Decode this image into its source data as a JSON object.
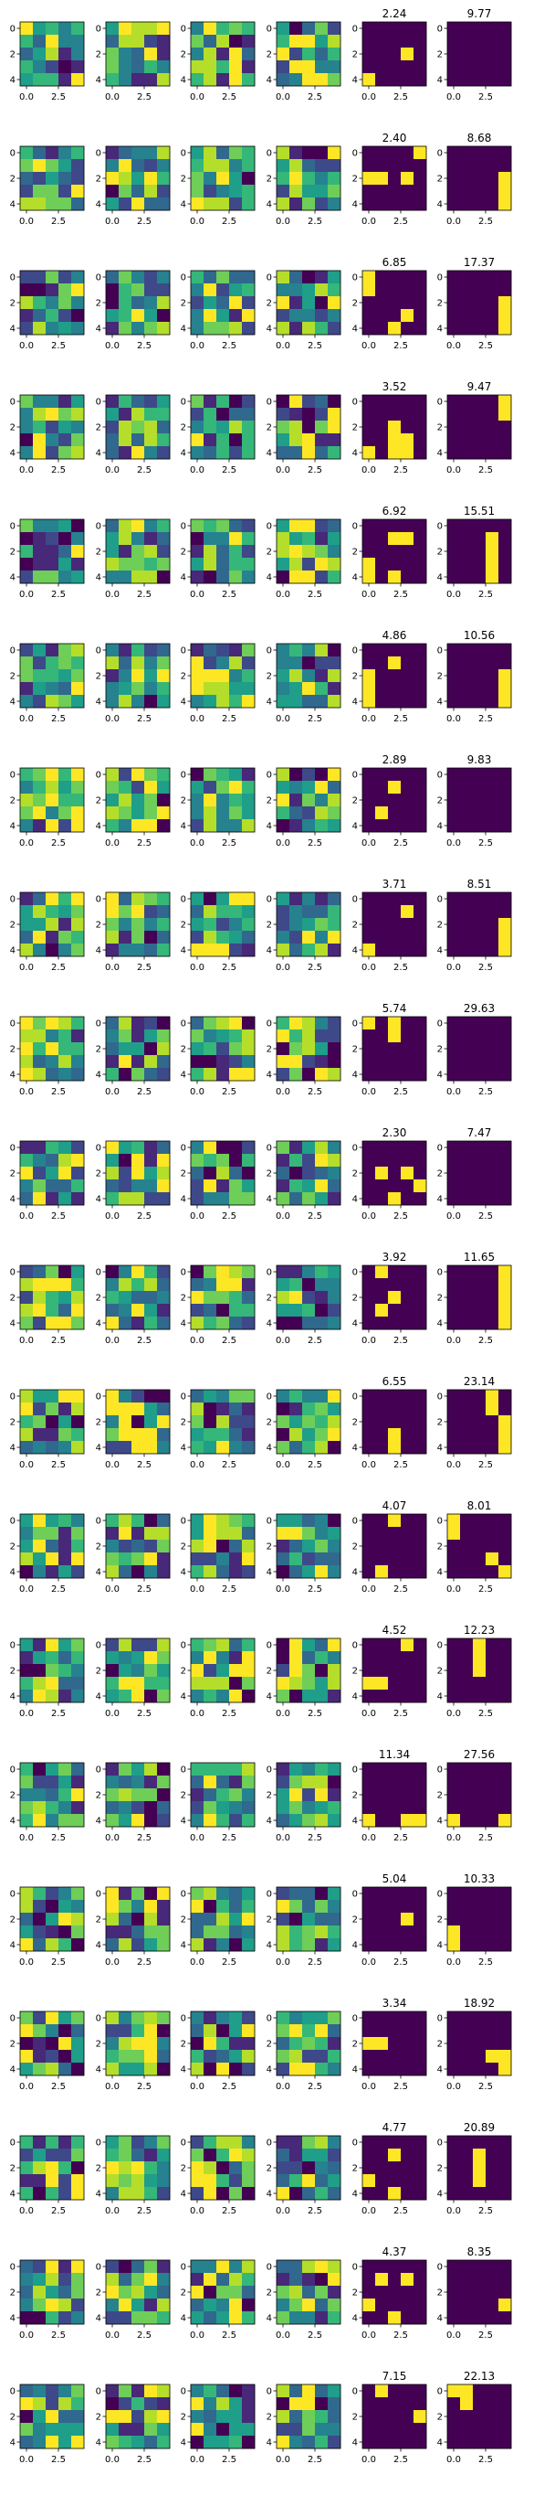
{
  "figure": {
    "rows": 20,
    "cols": 6,
    "grid_size": 5
  },
  "axis": {
    "x_ticks": [
      0.0,
      2.5
    ],
    "x_tick_labels": [
      "0.0",
      "2.5"
    ],
    "y_ticks": [
      0,
      2,
      4
    ],
    "y_tick_labels": [
      "0",
      "2",
      "4"
    ]
  },
  "colors": {
    "viridis": [
      "#440154",
      "#482878",
      "#3e4989",
      "#31688e",
      "#26828e",
      "#1f9e89",
      "#35b779",
      "#6ece58",
      "#b5de2b",
      "#fde725"
    ],
    "frame": "#000000",
    "background": "#ffffff"
  },
  "chart_data": {
    "type": "heatmap",
    "colormap": "viridis",
    "title_columns": [
      4,
      5
    ],
    "titles": [
      [
        "2.24",
        "9.77"
      ],
      [
        "2.40",
        "8.68"
      ],
      [
        "6.85",
        "17.37"
      ],
      [
        "3.52",
        "9.47"
      ],
      [
        "6.92",
        "15.51"
      ],
      [
        "4.86",
        "10.56"
      ],
      [
        "2.89",
        "9.83"
      ],
      [
        "3.71",
        "8.51"
      ],
      [
        "5.74",
        "29.63"
      ],
      [
        "2.30",
        "7.47"
      ],
      [
        "3.92",
        "11.65"
      ],
      [
        "6.55",
        "23.14"
      ],
      [
        "4.07",
        "8.01"
      ],
      [
        "4.52",
        "12.23"
      ],
      [
        "11.34",
        "27.56"
      ],
      [
        "5.04",
        "10.33"
      ],
      [
        "3.34",
        "18.92"
      ],
      [
        "4.77",
        "20.89"
      ],
      [
        "4.37",
        "8.35"
      ],
      [
        "7.15",
        "22.13"
      ]
    ],
    "binary_masks": [
      {
        "left": [
          [
            4,
            0
          ],
          [
            2,
            3
          ]
        ],
        "right": []
      },
      {
        "left": [
          [
            2,
            0
          ],
          [
            2,
            1
          ],
          [
            2,
            3
          ],
          [
            0,
            4
          ]
        ],
        "right": [
          [
            2,
            4
          ],
          [
            3,
            4
          ],
          [
            4,
            4
          ]
        ]
      },
      {
        "left": [
          [
            0,
            0
          ],
          [
            1,
            0
          ],
          [
            3,
            3
          ],
          [
            4,
            2
          ]
        ],
        "right": [
          [
            2,
            4
          ],
          [
            3,
            4
          ],
          [
            4,
            4
          ]
        ]
      },
      {
        "left": [
          [
            4,
            0
          ],
          [
            2,
            2
          ],
          [
            3,
            2
          ],
          [
            4,
            2
          ],
          [
            3,
            3
          ],
          [
            4,
            3
          ]
        ],
        "right": [
          [
            0,
            4
          ],
          [
            1,
            4
          ]
        ]
      },
      {
        "left": [
          [
            1,
            2
          ],
          [
            1,
            3
          ],
          [
            3,
            0
          ],
          [
            4,
            0
          ],
          [
            4,
            2
          ]
        ],
        "right": [
          [
            1,
            3
          ],
          [
            2,
            3
          ],
          [
            3,
            3
          ],
          [
            4,
            3
          ]
        ]
      },
      {
        "left": [
          [
            2,
            0
          ],
          [
            3,
            0
          ],
          [
            4,
            0
          ],
          [
            1,
            2
          ]
        ],
        "right": [
          [
            2,
            4
          ],
          [
            3,
            4
          ],
          [
            4,
            4
          ]
        ]
      },
      {
        "left": [
          [
            1,
            2
          ],
          [
            3,
            1
          ]
        ],
        "right": []
      },
      {
        "left": [
          [
            1,
            3
          ],
          [
            4,
            0
          ]
        ],
        "right": [
          [
            2,
            4
          ],
          [
            3,
            4
          ],
          [
            4,
            4
          ]
        ]
      },
      {
        "left": [
          [
            0,
            0
          ],
          [
            0,
            2
          ],
          [
            1,
            2
          ]
        ],
        "right": []
      },
      {
        "left": [
          [
            2,
            1
          ],
          [
            2,
            3
          ],
          [
            3,
            4
          ],
          [
            4,
            2
          ]
        ],
        "right": []
      },
      {
        "left": [
          [
            0,
            1
          ],
          [
            2,
            2
          ],
          [
            3,
            1
          ]
        ],
        "right": [
          [
            0,
            4
          ],
          [
            1,
            4
          ],
          [
            2,
            4
          ],
          [
            3,
            4
          ],
          [
            4,
            4
          ]
        ]
      },
      {
        "left": [
          [
            3,
            2
          ],
          [
            4,
            2
          ]
        ],
        "right": [
          [
            0,
            3
          ],
          [
            1,
            3
          ],
          [
            2,
            4
          ],
          [
            3,
            4
          ],
          [
            4,
            4
          ]
        ]
      },
      {
        "left": [
          [
            0,
            2
          ],
          [
            4,
            1
          ]
        ],
        "right": [
          [
            0,
            0
          ],
          [
            1,
            0
          ],
          [
            3,
            3
          ],
          [
            4,
            4
          ]
        ]
      },
      {
        "left": [
          [
            3,
            0
          ],
          [
            3,
            1
          ],
          [
            0,
            3
          ]
        ],
        "right": [
          [
            0,
            2
          ],
          [
            1,
            2
          ],
          [
            2,
            2
          ]
        ]
      },
      {
        "left": [
          [
            4,
            0
          ],
          [
            4,
            3
          ],
          [
            4,
            4
          ]
        ],
        "right": [
          [
            4,
            0
          ],
          [
            4,
            4
          ]
        ]
      },
      {
        "left": [
          [
            2,
            3
          ]
        ],
        "right": [
          [
            3,
            0
          ],
          [
            4,
            0
          ]
        ]
      },
      {
        "left": [
          [
            2,
            0
          ],
          [
            2,
            1
          ]
        ],
        "right": [
          [
            3,
            3
          ],
          [
            3,
            4
          ],
          [
            4,
            4
          ]
        ]
      },
      {
        "left": [
          [
            3,
            0
          ],
          [
            1,
            2
          ],
          [
            4,
            2
          ]
        ],
        "right": [
          [
            1,
            2
          ],
          [
            2,
            2
          ],
          [
            3,
            2
          ]
        ]
      },
      {
        "left": [
          [
            1,
            1
          ],
          [
            1,
            3
          ],
          [
            3,
            0
          ],
          [
            4,
            2
          ]
        ],
        "right": [
          [
            3,
            4
          ]
        ]
      },
      {
        "left": [
          [
            0,
            1
          ],
          [
            2,
            4
          ]
        ],
        "right": [
          [
            0,
            0
          ],
          [
            0,
            1
          ],
          [
            1,
            1
          ]
        ]
      }
    ]
  }
}
